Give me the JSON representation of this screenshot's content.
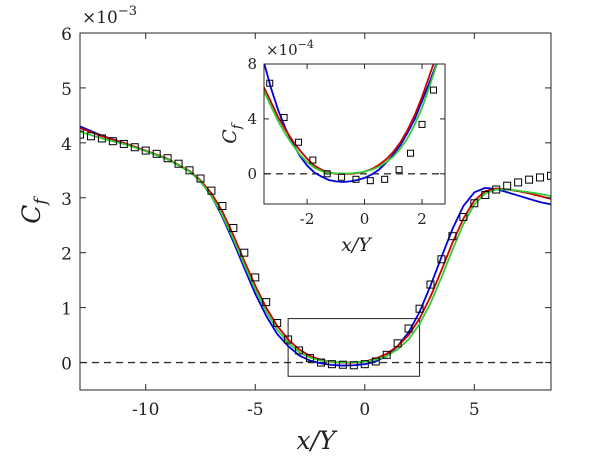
{
  "chart_data": [
    {
      "type": "line",
      "role": "main",
      "xlabel": "x/Y",
      "ylabel": "C",
      "ylabel_sub": "f",
      "y_multiplier_base": "×10",
      "y_multiplier_exp": "−3",
      "xlim": [
        -13,
        8.5
      ],
      "ylim": [
        -0.5,
        6
      ],
      "xticks": [
        -10,
        -5,
        0,
        5
      ],
      "xtick_labels": [
        "-10",
        "-5",
        "0",
        "5"
      ],
      "yticks": [
        0,
        1,
        2,
        3,
        4,
        5,
        6
      ],
      "ytick_labels": [
        "0",
        "1",
        "2",
        "3",
        "4",
        "5",
        "6"
      ],
      "grid": false,
      "reference_line": 0,
      "zoom_box": {
        "x": [
          -3.5,
          2.5
        ],
        "y": [
          -0.25,
          0.8
        ]
      },
      "series": [
        {
          "style": "line",
          "color": "#0000dd",
          "x": [
            -13,
            -12,
            -11,
            -10,
            -9,
            -8,
            -7.5,
            -7,
            -6.5,
            -6,
            -5.5,
            -5,
            -4.5,
            -4,
            -3.5,
            -3,
            -2.5,
            -2,
            -1.5,
            -1,
            -0.5,
            0,
            0.5,
            1,
            1.5,
            2,
            2.5,
            3,
            3.5,
            4,
            4.5,
            5,
            5.5,
            6,
            6.5,
            7,
            7.5,
            8,
            8.5
          ],
          "y": [
            4.3,
            4.13,
            4.0,
            3.85,
            3.7,
            3.48,
            3.3,
            3.03,
            2.65,
            2.2,
            1.72,
            1.25,
            0.85,
            0.52,
            0.3,
            0.13,
            0.035,
            -0.015,
            -0.045,
            -0.055,
            -0.05,
            -0.03,
            0.02,
            0.12,
            0.3,
            0.55,
            0.92,
            1.4,
            1.92,
            2.43,
            2.85,
            3.1,
            3.18,
            3.16,
            3.1,
            3.04,
            2.98,
            2.92,
            2.88
          ]
        },
        {
          "style": "line",
          "color": "#cc0000",
          "x": [
            -13,
            -12,
            -11,
            -10,
            -9,
            -8,
            -7.5,
            -7,
            -6.5,
            -6,
            -5.5,
            -5,
            -4.5,
            -4,
            -3.5,
            -3,
            -2.5,
            -2,
            -1.5,
            -1,
            -0.5,
            0,
            0.5,
            1,
            1.5,
            2,
            2.5,
            3,
            3.5,
            4,
            4.5,
            5,
            5.5,
            6,
            6.5,
            7,
            7.5,
            8,
            8.5
          ],
          "y": [
            4.27,
            4.12,
            4.0,
            3.86,
            3.71,
            3.49,
            3.32,
            3.08,
            2.75,
            2.32,
            1.85,
            1.4,
            1.0,
            0.67,
            0.42,
            0.24,
            0.12,
            0.05,
            0.01,
            0.0,
            0.0,
            0.02,
            0.07,
            0.16,
            0.3,
            0.5,
            0.8,
            1.2,
            1.68,
            2.18,
            2.62,
            2.95,
            3.12,
            3.17,
            3.15,
            3.12,
            3.08,
            3.03,
            2.98
          ]
        },
        {
          "style": "line",
          "color": "#33cc33",
          "x": [
            -13,
            -12,
            -11,
            -10,
            -9,
            -8,
            -7.5,
            -7,
            -6.5,
            -6,
            -5.5,
            -5,
            -4.5,
            -4,
            -3.5,
            -3,
            -2.5,
            -2,
            -1.5,
            -1,
            -0.5,
            0,
            0.5,
            1,
            1.5,
            2,
            2.5,
            3,
            3.5,
            4,
            4.5,
            5,
            5.5,
            6,
            6.5,
            7,
            7.5,
            8,
            8.5
          ],
          "y": [
            4.2,
            4.08,
            3.98,
            3.85,
            3.7,
            3.48,
            3.3,
            3.03,
            2.68,
            2.25,
            1.78,
            1.33,
            0.93,
            0.6,
            0.36,
            0.19,
            0.09,
            0.035,
            0.01,
            0.005,
            0.005,
            0.015,
            0.05,
            0.12,
            0.24,
            0.42,
            0.7,
            1.08,
            1.55,
            2.05,
            2.52,
            2.88,
            3.08,
            3.15,
            3.15,
            3.13,
            3.1,
            3.07,
            3.03
          ]
        },
        {
          "style": "marker",
          "marker": "square",
          "color": "#000000",
          "x": [
            -13,
            -12.5,
            -12,
            -11.5,
            -11,
            -10.5,
            -10,
            -9.5,
            -9,
            -8.5,
            -8,
            -7.5,
            -7,
            -6.5,
            -6,
            -5.5,
            -5,
            -4.5,
            -4,
            -3.5,
            -3,
            -2.5,
            -2,
            -1.5,
            -1,
            -0.5,
            0,
            0.5,
            1,
            1.5,
            2,
            2.5,
            3,
            3.5,
            4,
            4.5,
            5,
            5.5,
            6,
            6.5,
            7,
            7.5,
            8,
            8.5
          ],
          "y": [
            4.15,
            4.12,
            4.08,
            4.03,
            3.98,
            3.92,
            3.86,
            3.8,
            3.72,
            3.62,
            3.5,
            3.35,
            3.13,
            2.85,
            2.45,
            2.0,
            1.55,
            1.1,
            0.72,
            0.42,
            0.22,
            0.08,
            0.0,
            -0.03,
            -0.04,
            -0.05,
            -0.03,
            0.02,
            0.14,
            0.35,
            0.62,
            0.98,
            1.42,
            1.88,
            2.3,
            2.65,
            2.9,
            3.05,
            3.15,
            3.22,
            3.28,
            3.33,
            3.37,
            3.4
          ]
        }
      ]
    },
    {
      "type": "line",
      "role": "inset",
      "xlabel": "x/Y",
      "ylabel": "C",
      "ylabel_sub": "f",
      "y_multiplier_base": "×10",
      "y_multiplier_exp": "−4",
      "xlim": [
        -3.5,
        2.8
      ],
      "ylim": [
        -2.2,
        8
      ],
      "xticks": [
        -2,
        0,
        2
      ],
      "xtick_labels": [
        "-2",
        "0",
        "2"
      ],
      "yticks": [
        0,
        4,
        8
      ],
      "ytick_labels": [
        "0",
        "4",
        "8"
      ],
      "grid": false,
      "reference_line": 0,
      "series": [
        {
          "style": "line",
          "color": "#0000dd",
          "x": [
            -3.5,
            -3.25,
            -3,
            -2.75,
            -2.5,
            -2.25,
            -2,
            -1.75,
            -1.5,
            -1.25,
            -1,
            -0.75,
            -0.5,
            -0.25,
            0,
            0.25,
            0.5,
            0.75,
            1,
            1.25,
            1.5,
            1.75,
            2,
            2.25,
            2.5,
            2.75
          ],
          "y": [
            8.1,
            6.2,
            4.6,
            3.3,
            2.2,
            1.3,
            0.6,
            0.1,
            -0.2,
            -0.45,
            -0.55,
            -0.6,
            -0.55,
            -0.45,
            -0.3,
            -0.05,
            0.3,
            0.8,
            1.4,
            2.1,
            3.0,
            4.0,
            5.3,
            6.6,
            8.0,
            9.0
          ]
        },
        {
          "style": "line",
          "color": "#cc0000",
          "x": [
            -3.5,
            -3.25,
            -3,
            -2.75,
            -2.5,
            -2.25,
            -2,
            -1.75,
            -1.5,
            -1.25,
            -1,
            -0.75,
            -0.5,
            -0.25,
            0,
            0.25,
            0.5,
            0.75,
            1,
            1.25,
            1.5,
            1.75,
            2,
            2.25,
            2.5,
            2.75
          ],
          "y": [
            6.3,
            5.2,
            4.1,
            3.2,
            2.4,
            1.7,
            1.1,
            0.6,
            0.3,
            0.1,
            0.0,
            0.0,
            0.0,
            0.05,
            0.15,
            0.35,
            0.65,
            1.05,
            1.6,
            2.3,
            3.2,
            4.3,
            5.6,
            7.1,
            8.6,
            9.5
          ]
        },
        {
          "style": "line",
          "color": "#33cc33",
          "x": [
            -3.5,
            -3.25,
            -3,
            -2.75,
            -2.5,
            -2.25,
            -2,
            -1.75,
            -1.5,
            -1.25,
            -1,
            -0.75,
            -0.5,
            -0.25,
            0,
            0.25,
            0.5,
            0.75,
            1,
            1.25,
            1.5,
            1.75,
            2,
            2.25,
            2.5,
            2.75
          ],
          "y": [
            6.0,
            4.9,
            3.8,
            2.9,
            2.1,
            1.4,
            0.85,
            0.45,
            0.2,
            0.07,
            0.03,
            0.02,
            0.03,
            0.08,
            0.16,
            0.3,
            0.52,
            0.85,
            1.25,
            1.85,
            2.6,
            3.6,
            4.8,
            6.3,
            7.9,
            9.0
          ]
        },
        {
          "style": "marker",
          "marker": "square",
          "color": "#000000",
          "x": [
            -3.3,
            -2.8,
            -2.3,
            -1.8,
            -1.3,
            -0.8,
            -0.3,
            0.2,
            0.7,
            1.2,
            1.6,
            2.0,
            2.4
          ],
          "y": [
            6.6,
            4.1,
            2.3,
            1.0,
            0.0,
            -0.25,
            -0.4,
            -0.5,
            -0.4,
            0.3,
            1.5,
            3.6,
            6.1
          ]
        }
      ]
    }
  ]
}
